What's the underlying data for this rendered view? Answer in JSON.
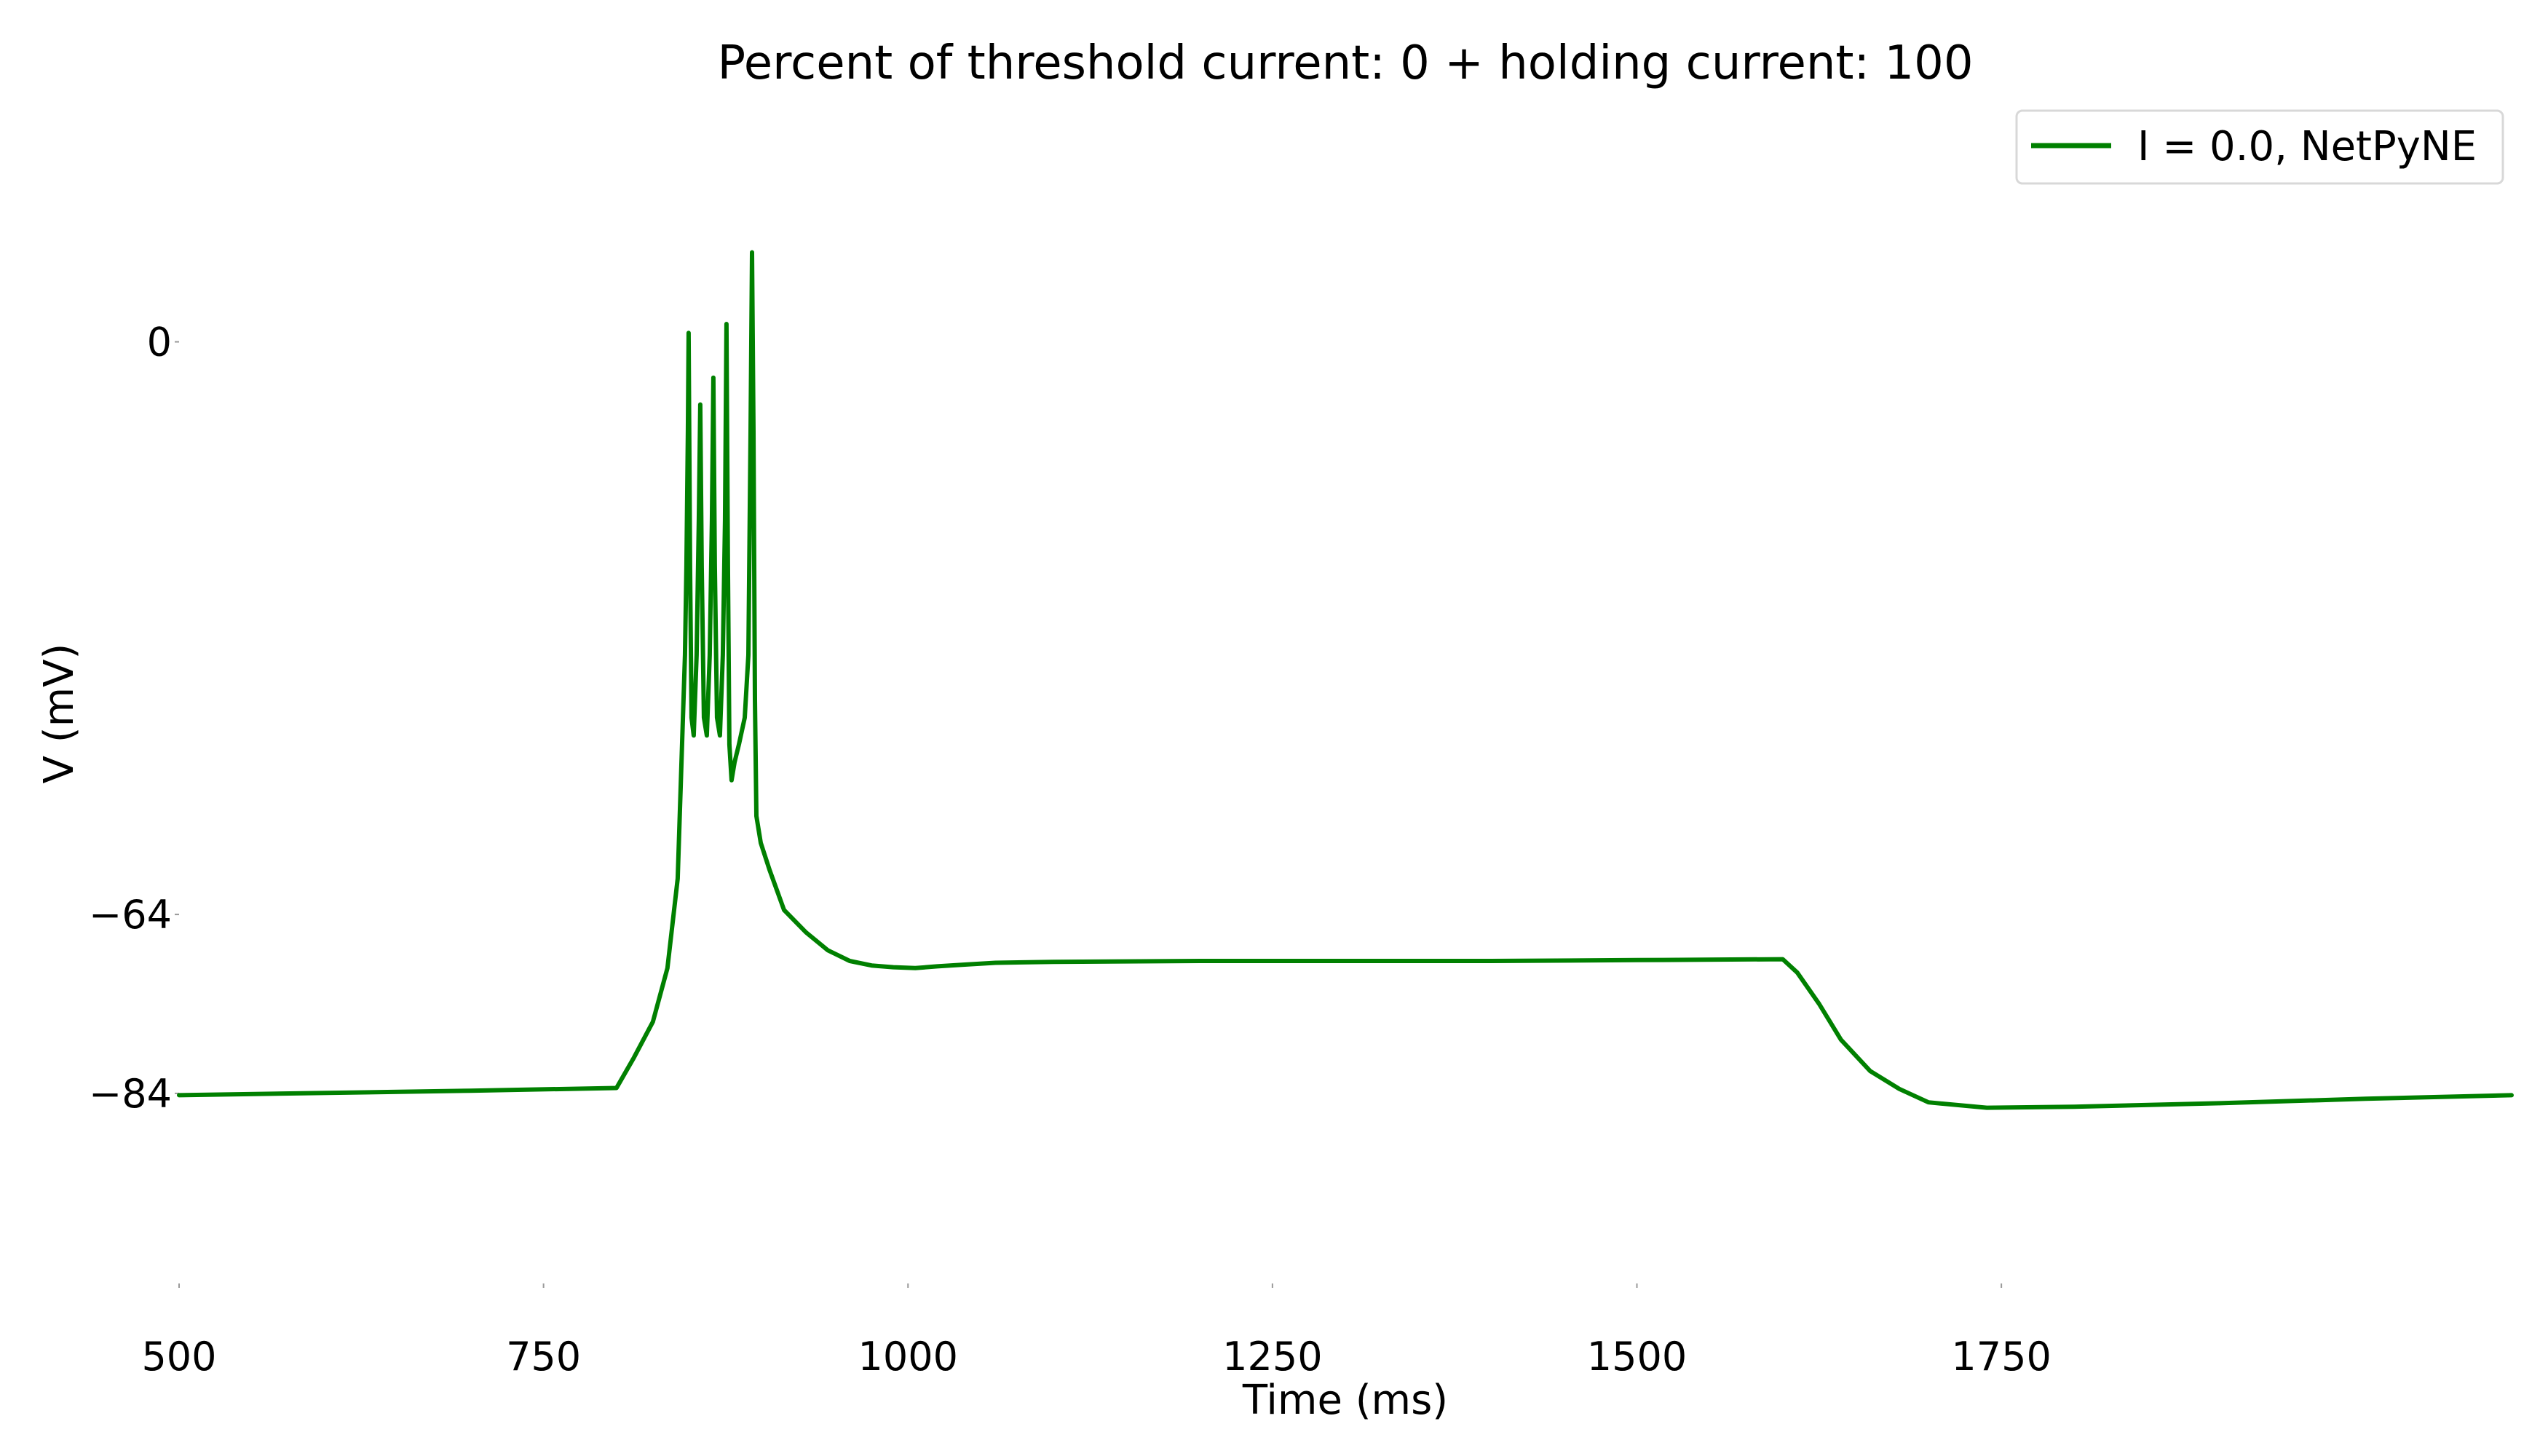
{
  "chart_data": {
    "type": "line",
    "title": "Percent of threshold current: 0 + holding current: 100",
    "xlabel": "Time (ms)",
    "ylabel": "V (mV)",
    "xlim": [
      500,
      2100
    ],
    "ylim": [
      -105,
      26
    ],
    "xticks": [
      500,
      750,
      1000,
      1250,
      1500,
      1750
    ],
    "xtick_labels": [
      "500",
      "750",
      "1000",
      "1250",
      "1500",
      "1750"
    ],
    "yticks": [
      0,
      -64,
      -84
    ],
    "ytick_labels": [
      "0",
      "−64",
      "−84"
    ],
    "grid": false,
    "legend_position": "top-right",
    "series": [
      {
        "name": "I = 0.0, NetPyNE",
        "color": "#008000",
        "x": [
          500,
          700,
          800,
          812,
          825,
          835,
          842,
          845,
          847,
          848,
          849,
          849.5,
          850.5,
          851.5,
          853,
          855,
          856.5,
          857.5,
          858.5,
          860,
          862,
          864,
          865.5,
          866.5,
          867.5,
          869,
          871,
          873,
          874.5,
          875.5,
          876.5,
          877.5,
          879,
          881,
          884,
          888,
          890.5,
          892,
          893,
          894,
          895,
          896,
          897,
          899,
          905,
          915,
          930,
          945,
          960,
          975,
          990,
          1005,
          1020,
          1040,
          1060,
          1100,
          1200,
          1300,
          1400,
          1500,
          1600,
          1610,
          1625,
          1640,
          1660,
          1680,
          1700,
          1740,
          1800,
          1900,
          2000,
          2100
        ],
        "y": [
          -84.2,
          -83.7,
          -83.4,
          -80,
          -76,
          -70,
          -60,
          -45,
          -35,
          -25,
          -10,
          1,
          -25,
          -42,
          -44,
          -35,
          -20,
          -7,
          -25,
          -42,
          -44,
          -35,
          -20,
          -4,
          -25,
          -42,
          -44,
          -35,
          -20,
          2,
          -25,
          -45,
          -49,
          -47,
          -45,
          -42,
          -35,
          -10,
          10,
          -10,
          -40,
          -53,
          -54,
          -56,
          -59,
          -63.5,
          -66,
          -68,
          -69.2,
          -69.7,
          -69.9,
          -70,
          -69.8,
          -69.6,
          -69.4,
          -69.3,
          -69.2,
          -69.2,
          -69.2,
          -69.1,
          -69,
          -70.5,
          -74,
          -78,
          -81.5,
          -83.5,
          -85,
          -85.6,
          -85.5,
          -85.1,
          -84.6,
          -84.2
        ]
      }
    ]
  }
}
